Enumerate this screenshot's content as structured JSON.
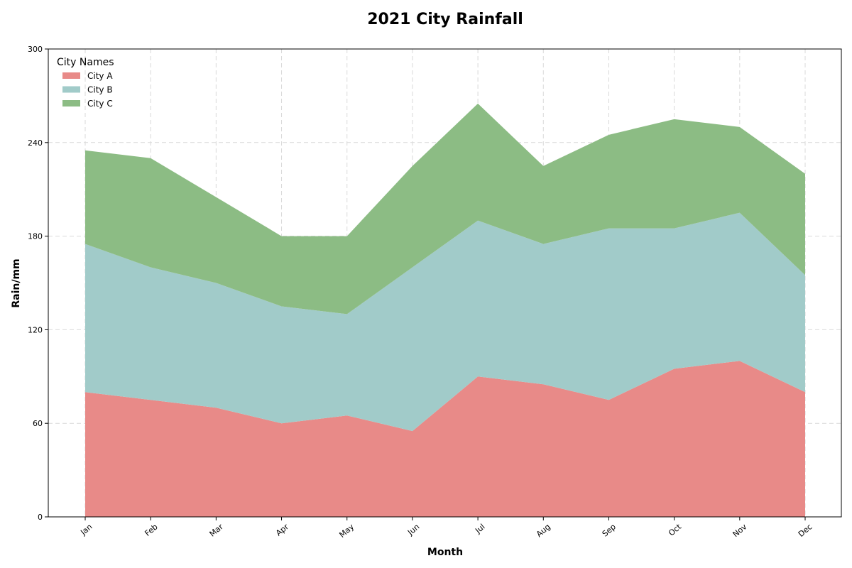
{
  "chart_data": {
    "type": "area",
    "stacked": true,
    "title": "2021 City Rainfall",
    "xlabel": "Month",
    "ylabel": "Rain/mm",
    "categories": [
      "Jan",
      "Feb",
      "Mar",
      "Apr",
      "May",
      "Jun",
      "Jul",
      "Aug",
      "Sep",
      "Oct",
      "Nov",
      "Dec"
    ],
    "ylim": [
      0,
      300
    ],
    "yticks": [
      0,
      60,
      120,
      180,
      240,
      300
    ],
    "grid": true,
    "legend": {
      "title": "City Names",
      "placement": "top-left"
    },
    "series": [
      {
        "name": "City A",
        "color": "#e88a88",
        "values": [
          80,
          75,
          70,
          60,
          65,
          55,
          90,
          85,
          75,
          95,
          100,
          80
        ]
      },
      {
        "name": "City B",
        "color": "#a1cbc9",
        "values": [
          95,
          85,
          80,
          75,
          65,
          105,
          100,
          90,
          110,
          90,
          95,
          75
        ]
      },
      {
        "name": "City C",
        "color": "#8cbc84",
        "values": [
          60,
          70,
          55,
          45,
          50,
          65,
          75,
          50,
          60,
          70,
          55,
          65
        ]
      }
    ]
  }
}
